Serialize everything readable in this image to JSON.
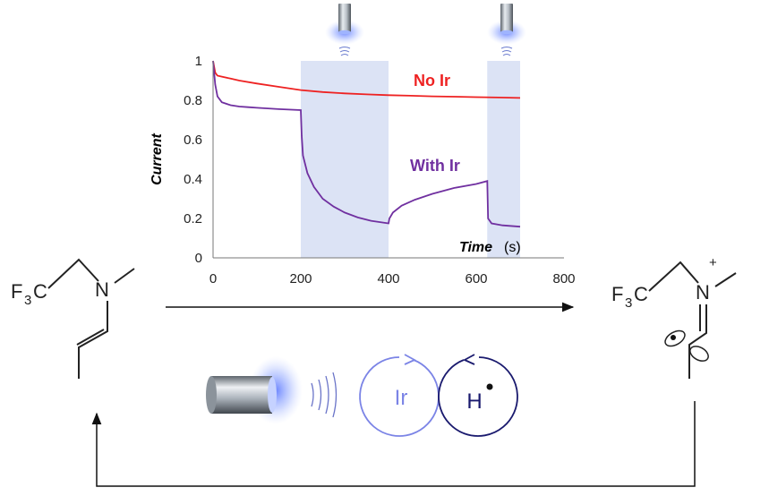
{
  "chart_data": {
    "type": "line",
    "title": "",
    "xlabel": "Time",
    "xunit": "(s)",
    "ylabel": "Current",
    "xlim": [
      0,
      800
    ],
    "ylim": [
      0,
      1
    ],
    "xticks": [
      "0",
      "200",
      "400",
      "600",
      "800"
    ],
    "yticks": [
      "0",
      "0.2",
      "0.4",
      "0.6",
      "0.8",
      "1"
    ],
    "grid": false,
    "illuminated_intervals": [
      [
        200,
        400
      ],
      [
        625,
        700
      ]
    ],
    "series": [
      {
        "name": "No Ir",
        "color": "#ee2222",
        "x": [
          0,
          5,
          10,
          20,
          40,
          60,
          100,
          150,
          200,
          250,
          300,
          350,
          400,
          450,
          500,
          550,
          600,
          650,
          700
        ],
        "y": [
          1.0,
          0.94,
          0.925,
          0.92,
          0.91,
          0.9,
          0.885,
          0.868,
          0.852,
          0.842,
          0.835,
          0.83,
          0.826,
          0.823,
          0.82,
          0.818,
          0.816,
          0.814,
          0.812
        ]
      },
      {
        "name": "With Ir",
        "color": "#7030a0",
        "x": [
          0,
          5,
          10,
          20,
          40,
          60,
          80,
          100,
          150,
          200,
          202,
          205,
          215,
          230,
          250,
          275,
          300,
          330,
          360,
          400,
          402,
          410,
          430,
          460,
          500,
          550,
          600,
          625,
          627,
          635,
          660,
          700
        ],
        "y": [
          1.0,
          0.88,
          0.82,
          0.79,
          0.775,
          0.768,
          0.765,
          0.762,
          0.755,
          0.75,
          0.62,
          0.52,
          0.43,
          0.36,
          0.3,
          0.26,
          0.23,
          0.205,
          0.188,
          0.175,
          0.2,
          0.23,
          0.265,
          0.295,
          0.325,
          0.355,
          0.375,
          0.39,
          0.2,
          0.175,
          0.165,
          0.158
        ]
      }
    ]
  },
  "scheme": {
    "reactant": {
      "f3": "F",
      "f3_sub": "3",
      "c": "C",
      "n": "N"
    },
    "product": {
      "f3": "F",
      "f3_sub": "3",
      "c": "C",
      "n": "N",
      "charge": "+"
    },
    "catalyst_ring": {
      "label": "Ir",
      "color": "#7b84e6"
    },
    "hat_ring": {
      "label": "H",
      "color": "#1a1a6e"
    },
    "light_color": "#5a7fff"
  }
}
